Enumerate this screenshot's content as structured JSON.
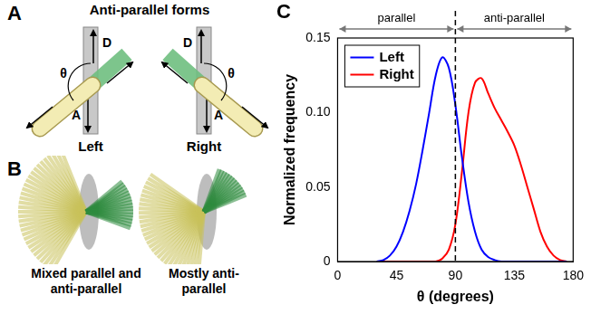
{
  "panel_a": {
    "letter": "A",
    "title": "Anti-parallel forms",
    "diagrams": [
      {
        "label": "Left",
        "donor": "D",
        "acceptor": "A",
        "angle": "θ"
      },
      {
        "label": "Right",
        "donor": "D",
        "acceptor": "A",
        "angle": "θ"
      }
    ]
  },
  "panel_b": {
    "letter": "B",
    "captions": [
      "Mixed parallel and anti-parallel",
      "Mostly anti-parallel"
    ]
  },
  "chart_data": {
    "letter": "C",
    "type": "line",
    "xlabel": "θ (degrees)",
    "ylabel": "Normalized frequency",
    "x": [
      30,
      35,
      40,
      45,
      50,
      55,
      60,
      65,
      70,
      75,
      80,
      85,
      90,
      95,
      100,
      105,
      110,
      115,
      120,
      125,
      130,
      135,
      140,
      145,
      150,
      155,
      160,
      165,
      170,
      175
    ],
    "series": [
      {
        "name": "Left",
        "color": "#0000ff",
        "values": [
          0,
          0.001,
          0.004,
          0.01,
          0.02,
          0.034,
          0.052,
          0.075,
          0.1,
          0.125,
          0.137,
          0.13,
          0.105,
          0.07,
          0.04,
          0.02,
          0.008,
          0.003,
          0.001,
          0,
          0,
          0,
          0,
          0,
          0,
          0,
          0,
          0,
          0,
          0
        ]
      },
      {
        "name": "Right",
        "color": "#ff0000",
        "values": [
          0,
          0,
          0,
          0,
          0,
          0,
          0,
          0,
          0,
          0,
          0.002,
          0.008,
          0.025,
          0.06,
          0.1,
          0.12,
          0.123,
          0.113,
          0.103,
          0.095,
          0.087,
          0.078,
          0.065,
          0.05,
          0.035,
          0.02,
          0.01,
          0.004,
          0.001,
          0
        ]
      }
    ],
    "xlim": [
      0,
      180
    ],
    "xticks": [
      0,
      45,
      90,
      135,
      180
    ],
    "ylim": [
      0,
      0.15
    ],
    "yticks": [
      0,
      0.05,
      {
        "value": 0.1,
        "label": "0.10"
      },
      0.15
    ],
    "grid": false,
    "legend": "upper left",
    "annotations": [
      {
        "text": "parallel",
        "x": [
          0,
          90
        ]
      },
      {
        "text": "anti-parallel",
        "x": [
          90,
          180
        ]
      }
    ],
    "reference_line": {
      "x": 90,
      "line_style": "dashed"
    }
  }
}
